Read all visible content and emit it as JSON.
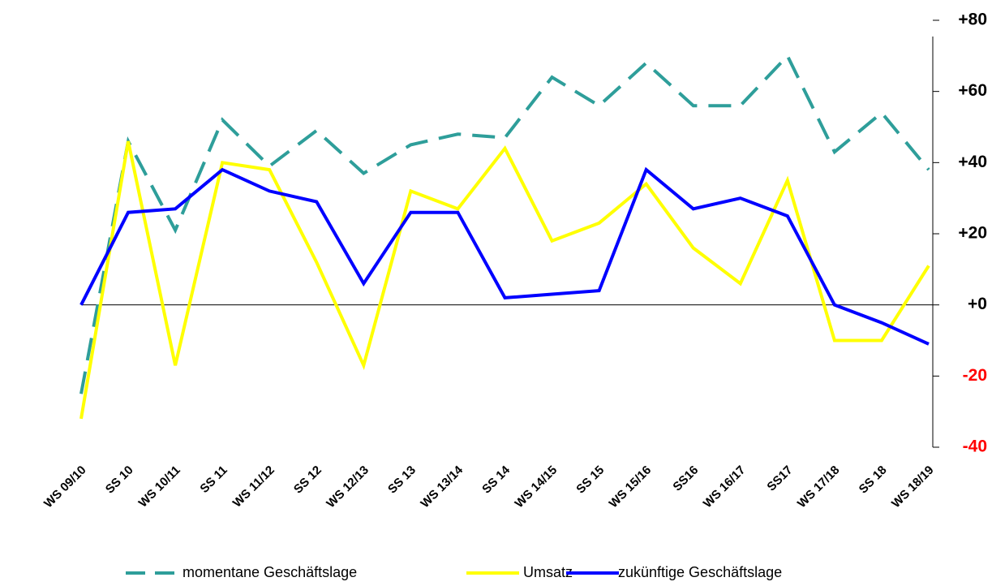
{
  "chart_data": {
    "type": "line",
    "categories": [
      "WS 09/10",
      "SS 10",
      "WS 10/11",
      "SS 11",
      "WS 11/12",
      "SS 12",
      "WS 12/13",
      "SS 13",
      "WS 13/14",
      "SS 14",
      "WS 14/15",
      "SS 15",
      "WS 15/16",
      "SS16",
      "WS 16/17",
      "SS17",
      "WS 17/18",
      "SS 18",
      "WS 18/19"
    ],
    "series": [
      {
        "name": "momentane Geschäftslage",
        "color": "#2e9e9a",
        "line_style": "dashed",
        "values": [
          -25,
          46,
          21,
          52,
          39,
          49,
          37,
          45,
          48,
          47,
          64,
          56,
          68,
          56,
          56,
          70,
          43,
          54,
          38
        ]
      },
      {
        "name": "Umsatz",
        "color": "#ffff00",
        "line_style": "solid",
        "values": [
          -32,
          46,
          -17,
          40,
          38,
          12,
          -17,
          32,
          27,
          44,
          18,
          23,
          34,
          16,
          6,
          35,
          -10,
          -10,
          11
        ]
      },
      {
        "name": "zukünftige Geschäftslage",
        "color": "#0000ff",
        "line_style": "solid",
        "values": [
          0,
          26,
          27,
          38,
          32,
          29,
          6,
          26,
          26,
          2,
          3,
          4,
          38,
          27,
          30,
          25,
          0,
          -5,
          -11
        ]
      }
    ],
    "ylim": [
      -40,
      80
    ],
    "yticks": [
      {
        "value": 80,
        "label": "+80"
      },
      {
        "value": 60,
        "label": "+60"
      },
      {
        "value": 40,
        "label": "+40"
      },
      {
        "value": 20,
        "label": "+20"
      },
      {
        "value": 0,
        "label": "+0"
      },
      -20,
      -40
    ],
    "tick_color": "#000000",
    "negative_tick_color": "#ff0000",
    "zero_line": true,
    "legend": "bottom"
  }
}
